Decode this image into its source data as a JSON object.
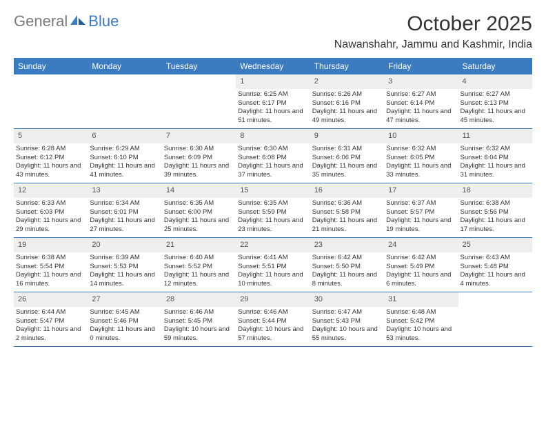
{
  "logo": {
    "part1": "General",
    "part2": "Blue"
  },
  "title": "October 2025",
  "location": "Nawanshahr, Jammu and Kashmir, India",
  "days": [
    "Sunday",
    "Monday",
    "Tuesday",
    "Wednesday",
    "Thursday",
    "Friday",
    "Saturday"
  ],
  "colors": {
    "header_bg": "#3b7bbf",
    "header_text": "#ffffff",
    "daynum_bg": "#eeeeee",
    "border": "#3b7bbf",
    "text": "#333333"
  },
  "cells": [
    {
      "n": "",
      "sr": "",
      "ss": "",
      "dl": ""
    },
    {
      "n": "",
      "sr": "",
      "ss": "",
      "dl": ""
    },
    {
      "n": "",
      "sr": "",
      "ss": "",
      "dl": ""
    },
    {
      "n": "1",
      "sr": "Sunrise: 6:25 AM",
      "ss": "Sunset: 6:17 PM",
      "dl": "Daylight: 11 hours and 51 minutes."
    },
    {
      "n": "2",
      "sr": "Sunrise: 6:26 AM",
      "ss": "Sunset: 6:16 PM",
      "dl": "Daylight: 11 hours and 49 minutes."
    },
    {
      "n": "3",
      "sr": "Sunrise: 6:27 AM",
      "ss": "Sunset: 6:14 PM",
      "dl": "Daylight: 11 hours and 47 minutes."
    },
    {
      "n": "4",
      "sr": "Sunrise: 6:27 AM",
      "ss": "Sunset: 6:13 PM",
      "dl": "Daylight: 11 hours and 45 minutes."
    },
    {
      "n": "5",
      "sr": "Sunrise: 6:28 AM",
      "ss": "Sunset: 6:12 PM",
      "dl": "Daylight: 11 hours and 43 minutes."
    },
    {
      "n": "6",
      "sr": "Sunrise: 6:29 AM",
      "ss": "Sunset: 6:10 PM",
      "dl": "Daylight: 11 hours and 41 minutes."
    },
    {
      "n": "7",
      "sr": "Sunrise: 6:30 AM",
      "ss": "Sunset: 6:09 PM",
      "dl": "Daylight: 11 hours and 39 minutes."
    },
    {
      "n": "8",
      "sr": "Sunrise: 6:30 AM",
      "ss": "Sunset: 6:08 PM",
      "dl": "Daylight: 11 hours and 37 minutes."
    },
    {
      "n": "9",
      "sr": "Sunrise: 6:31 AM",
      "ss": "Sunset: 6:06 PM",
      "dl": "Daylight: 11 hours and 35 minutes."
    },
    {
      "n": "10",
      "sr": "Sunrise: 6:32 AM",
      "ss": "Sunset: 6:05 PM",
      "dl": "Daylight: 11 hours and 33 minutes."
    },
    {
      "n": "11",
      "sr": "Sunrise: 6:32 AM",
      "ss": "Sunset: 6:04 PM",
      "dl": "Daylight: 11 hours and 31 minutes."
    },
    {
      "n": "12",
      "sr": "Sunrise: 6:33 AM",
      "ss": "Sunset: 6:03 PM",
      "dl": "Daylight: 11 hours and 29 minutes."
    },
    {
      "n": "13",
      "sr": "Sunrise: 6:34 AM",
      "ss": "Sunset: 6:01 PM",
      "dl": "Daylight: 11 hours and 27 minutes."
    },
    {
      "n": "14",
      "sr": "Sunrise: 6:35 AM",
      "ss": "Sunset: 6:00 PM",
      "dl": "Daylight: 11 hours and 25 minutes."
    },
    {
      "n": "15",
      "sr": "Sunrise: 6:35 AM",
      "ss": "Sunset: 5:59 PM",
      "dl": "Daylight: 11 hours and 23 minutes."
    },
    {
      "n": "16",
      "sr": "Sunrise: 6:36 AM",
      "ss": "Sunset: 5:58 PM",
      "dl": "Daylight: 11 hours and 21 minutes."
    },
    {
      "n": "17",
      "sr": "Sunrise: 6:37 AM",
      "ss": "Sunset: 5:57 PM",
      "dl": "Daylight: 11 hours and 19 minutes."
    },
    {
      "n": "18",
      "sr": "Sunrise: 6:38 AM",
      "ss": "Sunset: 5:56 PM",
      "dl": "Daylight: 11 hours and 17 minutes."
    },
    {
      "n": "19",
      "sr": "Sunrise: 6:38 AM",
      "ss": "Sunset: 5:54 PM",
      "dl": "Daylight: 11 hours and 16 minutes."
    },
    {
      "n": "20",
      "sr": "Sunrise: 6:39 AM",
      "ss": "Sunset: 5:53 PM",
      "dl": "Daylight: 11 hours and 14 minutes."
    },
    {
      "n": "21",
      "sr": "Sunrise: 6:40 AM",
      "ss": "Sunset: 5:52 PM",
      "dl": "Daylight: 11 hours and 12 minutes."
    },
    {
      "n": "22",
      "sr": "Sunrise: 6:41 AM",
      "ss": "Sunset: 5:51 PM",
      "dl": "Daylight: 11 hours and 10 minutes."
    },
    {
      "n": "23",
      "sr": "Sunrise: 6:42 AM",
      "ss": "Sunset: 5:50 PM",
      "dl": "Daylight: 11 hours and 8 minutes."
    },
    {
      "n": "24",
      "sr": "Sunrise: 6:42 AM",
      "ss": "Sunset: 5:49 PM",
      "dl": "Daylight: 11 hours and 6 minutes."
    },
    {
      "n": "25",
      "sr": "Sunrise: 6:43 AM",
      "ss": "Sunset: 5:48 PM",
      "dl": "Daylight: 11 hours and 4 minutes."
    },
    {
      "n": "26",
      "sr": "Sunrise: 6:44 AM",
      "ss": "Sunset: 5:47 PM",
      "dl": "Daylight: 11 hours and 2 minutes."
    },
    {
      "n": "27",
      "sr": "Sunrise: 6:45 AM",
      "ss": "Sunset: 5:46 PM",
      "dl": "Daylight: 11 hours and 0 minutes."
    },
    {
      "n": "28",
      "sr": "Sunrise: 6:46 AM",
      "ss": "Sunset: 5:45 PM",
      "dl": "Daylight: 10 hours and 59 minutes."
    },
    {
      "n": "29",
      "sr": "Sunrise: 6:46 AM",
      "ss": "Sunset: 5:44 PM",
      "dl": "Daylight: 10 hours and 57 minutes."
    },
    {
      "n": "30",
      "sr": "Sunrise: 6:47 AM",
      "ss": "Sunset: 5:43 PM",
      "dl": "Daylight: 10 hours and 55 minutes."
    },
    {
      "n": "31",
      "sr": "Sunrise: 6:48 AM",
      "ss": "Sunset: 5:42 PM",
      "dl": "Daylight: 10 hours and 53 minutes."
    },
    {
      "n": "",
      "sr": "",
      "ss": "",
      "dl": ""
    }
  ]
}
